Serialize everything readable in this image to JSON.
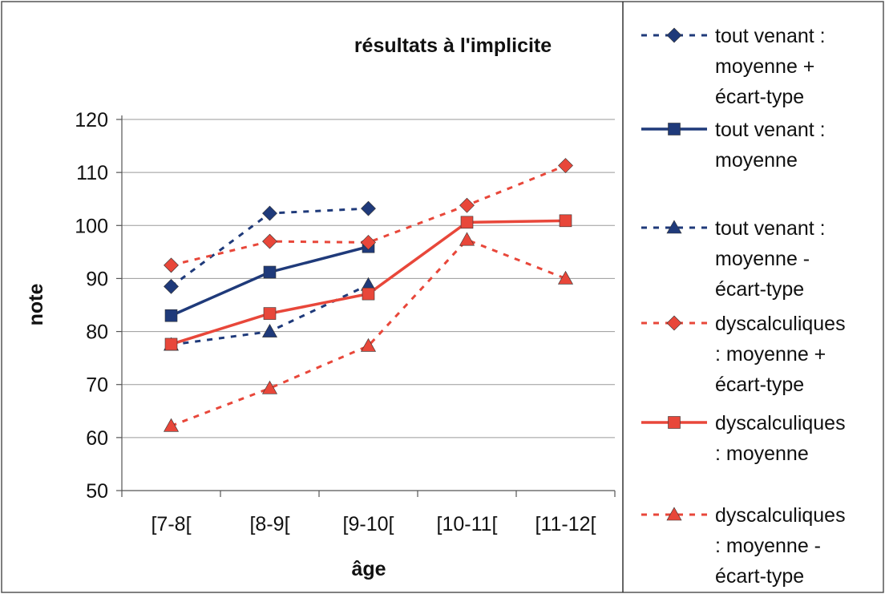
{
  "chart_data": {
    "type": "line",
    "title": "résultats à l'implicite",
    "xlabel": "âge",
    "ylabel": "note",
    "categories": [
      "[7-8[",
      "[8-9[",
      "[9-10[",
      "[10-11[",
      "[11-12["
    ],
    "ylim": [
      50,
      120
    ],
    "yticks": [
      "50",
      "60",
      "70",
      "80",
      "90",
      "100",
      "110",
      "120"
    ],
    "grid": true,
    "legend_position": "right",
    "series": [
      {
        "name": "tout venant : moyenne + écart-type",
        "legend_lines": [
          "tout venant :",
          "moyenne +",
          "écart-type"
        ],
        "values": [
          88.5,
          102.3,
          103.2,
          null,
          null
        ],
        "color": "#1f3a7a",
        "dash": "dashed",
        "marker": "diamond"
      },
      {
        "name": "tout venant : moyenne",
        "legend_lines": [
          "tout venant :",
          "moyenne"
        ],
        "values": [
          83.0,
          91.2,
          96.0,
          null,
          null
        ],
        "color": "#1f3a7a",
        "dash": "solid",
        "marker": "square"
      },
      {
        "name": "tout venant : moyenne - écart-type",
        "legend_lines": [
          "tout venant :",
          "moyenne -",
          "écart-type"
        ],
        "values": [
          77.5,
          80.0,
          88.8,
          null,
          null
        ],
        "color": "#1f3a7a",
        "dash": "dashed",
        "marker": "triangle"
      },
      {
        "name": "dyscalculiques : moyenne + écart-type",
        "legend_lines": [
          "dyscalculiques",
          ": moyenne +",
          "écart-type"
        ],
        "values": [
          92.5,
          97.0,
          96.8,
          103.8,
          111.3
        ],
        "color": "#e8473a",
        "dash": "dashed",
        "marker": "diamond"
      },
      {
        "name": "dyscalculiques : moyenne",
        "legend_lines": [
          "dyscalculiques",
          ": moyenne"
        ],
        "values": [
          77.6,
          83.4,
          87.1,
          100.6,
          100.9
        ],
        "color": "#e8473a",
        "dash": "solid",
        "marker": "square"
      },
      {
        "name": "dyscalculiques : moyenne - écart-type",
        "legend_lines": [
          "dyscalculiques",
          ": moyenne -",
          "écart-type"
        ],
        "values": [
          62.2,
          69.3,
          77.3,
          97.3,
          90.0
        ],
        "color": "#e8473a",
        "dash": "dashed",
        "marker": "triangle"
      }
    ]
  }
}
